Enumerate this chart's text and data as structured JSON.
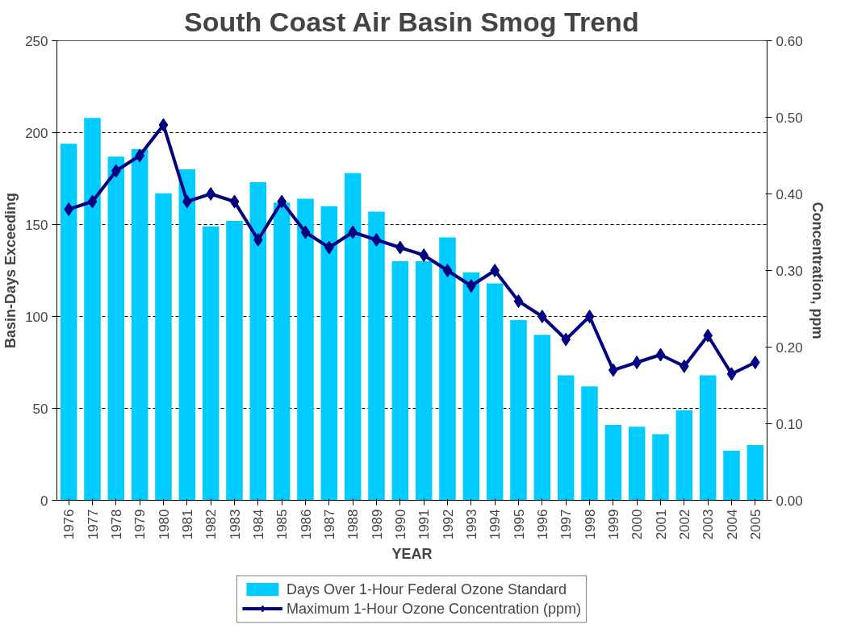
{
  "chart_data": {
    "type": "bar",
    "title": "South Coast Air Basin Smog Trend",
    "xlabel": "YEAR",
    "ylabel": "Basin-Days Exceeding",
    "y2label": "Concentration, ppm",
    "categories": [
      "1976",
      "1977",
      "1978",
      "1979",
      "1980",
      "1981",
      "1982",
      "1983",
      "1984",
      "1985",
      "1986",
      "1987",
      "1988",
      "1989",
      "1990",
      "1991",
      "1992",
      "1993",
      "1994",
      "1995",
      "1996",
      "1997",
      "1998",
      "1999",
      "2000",
      "2001",
      "2002",
      "2003",
      "2004",
      "2005"
    ],
    "series": [
      {
        "name": "Days Over 1-Hour Federal Ozone Standard",
        "color": "#00ccff",
        "values": [
          194,
          208,
          187,
          191,
          167,
          180,
          149,
          152,
          173,
          162,
          164,
          160,
          178,
          157,
          130,
          130,
          143,
          124,
          118,
          98,
          90,
          68,
          62,
          41,
          40,
          36,
          49,
          68,
          27,
          30
        ]
      },
      {
        "name": "Maximum 1-Hour Ozone Concentration (ppm)",
        "type": "line",
        "axis": "y2",
        "color": "#000080",
        "marker": "diamond",
        "values": [
          0.38,
          0.39,
          0.43,
          0.45,
          0.49,
          0.39,
          0.4,
          0.39,
          0.34,
          0.39,
          0.35,
          0.33,
          0.35,
          0.34,
          0.33,
          0.32,
          0.3,
          0.28,
          0.3,
          0.26,
          0.24,
          0.21,
          0.24,
          0.17,
          0.18,
          0.19,
          0.175,
          0.215,
          0.165,
          0.18
        ]
      }
    ],
    "ylim": [
      0,
      250
    ],
    "yticks": [
      0,
      50,
      100,
      150,
      200,
      250
    ],
    "y2lim": [
      0,
      0.6
    ],
    "y2ticks": [
      {
        "value": 0,
        "label": "0.00"
      },
      {
        "value": 0.1,
        "label": "0.10"
      },
      {
        "value": 0.2,
        "label": "0.20"
      },
      {
        "value": 0.3,
        "label": "0.30"
      },
      {
        "value": 0.4,
        "label": "0.40"
      },
      {
        "value": 0.5,
        "label": "0.50"
      },
      {
        "value": 0.6,
        "label": "0.60"
      }
    ],
    "grid": "y",
    "legend": "bottom"
  }
}
